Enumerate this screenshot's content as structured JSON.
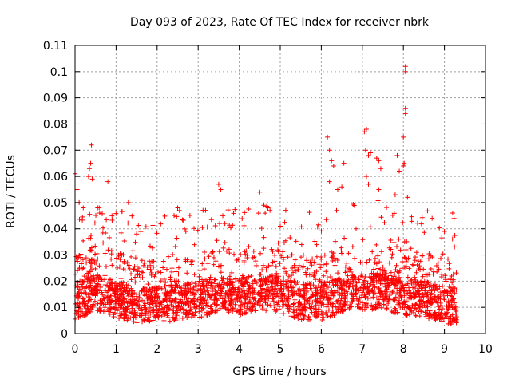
{
  "chart_data": {
    "type": "scatter",
    "title": "Day 093 of 2023, Rate Of TEC Index for receiver nbrk",
    "xlabel": "GPS time / hours",
    "ylabel": "ROTI / TECUs",
    "xlim": [
      0,
      10
    ],
    "ylim": [
      0,
      0.11
    ],
    "xticks": [
      0,
      1,
      2,
      3,
      4,
      5,
      6,
      7,
      8,
      9,
      10
    ],
    "yticks": [
      0,
      0.01,
      0.02,
      0.03,
      0.04,
      0.05,
      0.06,
      0.07,
      0.08,
      0.09,
      0.1,
      0.11
    ],
    "grid": true,
    "marker": "+",
    "color": "#ff0000",
    "data_span_hours": [
      0,
      9.3
    ],
    "notable_points": [
      {
        "x": 0.0,
        "y": 0.061
      },
      {
        "x": 0.05,
        "y": 0.055
      },
      {
        "x": 0.1,
        "y": 0.05
      },
      {
        "x": 0.2,
        "y": 0.048
      },
      {
        "x": 0.33,
        "y": 0.06
      },
      {
        "x": 0.35,
        "y": 0.063
      },
      {
        "x": 0.38,
        "y": 0.065
      },
      {
        "x": 0.4,
        "y": 0.072
      },
      {
        "x": 0.42,
        "y": 0.059
      },
      {
        "x": 0.55,
        "y": 0.048
      },
      {
        "x": 0.6,
        "y": 0.046
      },
      {
        "x": 0.8,
        "y": 0.058
      },
      {
        "x": 0.9,
        "y": 0.045
      },
      {
        "x": 1.3,
        "y": 0.05
      },
      {
        "x": 1.5,
        "y": 0.038
      },
      {
        "x": 2.5,
        "y": 0.048
      },
      {
        "x": 2.7,
        "y": 0.039
      },
      {
        "x": 3.5,
        "y": 0.057
      },
      {
        "x": 3.55,
        "y": 0.055
      },
      {
        "x": 3.6,
        "y": 0.045
      },
      {
        "x": 3.65,
        "y": 0.042
      },
      {
        "x": 4.5,
        "y": 0.054
      },
      {
        "x": 4.6,
        "y": 0.049
      },
      {
        "x": 4.7,
        "y": 0.048
      },
      {
        "x": 4.75,
        "y": 0.047
      },
      {
        "x": 5.0,
        "y": 0.041
      },
      {
        "x": 6.15,
        "y": 0.075
      },
      {
        "x": 6.2,
        "y": 0.07
      },
      {
        "x": 6.25,
        "y": 0.066
      },
      {
        "x": 6.3,
        "y": 0.064
      },
      {
        "x": 6.2,
        "y": 0.058
      },
      {
        "x": 6.4,
        "y": 0.055
      },
      {
        "x": 6.5,
        "y": 0.056
      },
      {
        "x": 6.55,
        "y": 0.065
      },
      {
        "x": 7.05,
        "y": 0.077
      },
      {
        "x": 7.1,
        "y": 0.078
      },
      {
        "x": 7.08,
        "y": 0.07
      },
      {
        "x": 7.15,
        "y": 0.068
      },
      {
        "x": 7.2,
        "y": 0.069
      },
      {
        "x": 7.1,
        "y": 0.06
      },
      {
        "x": 7.15,
        "y": 0.057
      },
      {
        "x": 7.35,
        "y": 0.067
      },
      {
        "x": 7.4,
        "y": 0.066
      },
      {
        "x": 7.45,
        "y": 0.063
      },
      {
        "x": 7.4,
        "y": 0.055
      },
      {
        "x": 7.85,
        "y": 0.068
      },
      {
        "x": 7.9,
        "y": 0.062
      },
      {
        "x": 7.8,
        "y": 0.053
      },
      {
        "x": 8.0,
        "y": 0.075
      },
      {
        "x": 8.02,
        "y": 0.065
      },
      {
        "x": 8.0,
        "y": 0.064
      },
      {
        "x": 8.05,
        "y": 0.084
      },
      {
        "x": 8.05,
        "y": 0.086
      },
      {
        "x": 8.05,
        "y": 0.1
      },
      {
        "x": 8.05,
        "y": 0.102
      },
      {
        "x": 8.1,
        "y": 0.052
      },
      {
        "x": 8.7,
        "y": 0.044
      },
      {
        "x": 9.0,
        "y": 0.039
      },
      {
        "x": 9.2,
        "y": 0.046
      }
    ],
    "baseline_band": {
      "note": "dense cloud of points between roughly 0.003 and 0.025 TECU across 0-9.3 h",
      "profile": [
        {
          "x": 0.0,
          "y": 0.012
        },
        {
          "x": 0.5,
          "y": 0.016
        },
        {
          "x": 1.0,
          "y": 0.013
        },
        {
          "x": 1.5,
          "y": 0.011
        },
        {
          "x": 2.0,
          "y": 0.011
        },
        {
          "x": 2.5,
          "y": 0.012
        },
        {
          "x": 3.0,
          "y": 0.013
        },
        {
          "x": 3.5,
          "y": 0.015
        },
        {
          "x": 4.0,
          "y": 0.014
        },
        {
          "x": 4.5,
          "y": 0.016
        },
        {
          "x": 5.0,
          "y": 0.015
        },
        {
          "x": 5.5,
          "y": 0.012
        },
        {
          "x": 6.0,
          "y": 0.012
        },
        {
          "x": 6.5,
          "y": 0.015
        },
        {
          "x": 7.0,
          "y": 0.016
        },
        {
          "x": 7.5,
          "y": 0.016
        },
        {
          "x": 8.0,
          "y": 0.014
        },
        {
          "x": 8.5,
          "y": 0.013
        },
        {
          "x": 9.0,
          "y": 0.011
        },
        {
          "x": 9.3,
          "y": 0.01
        }
      ]
    }
  }
}
